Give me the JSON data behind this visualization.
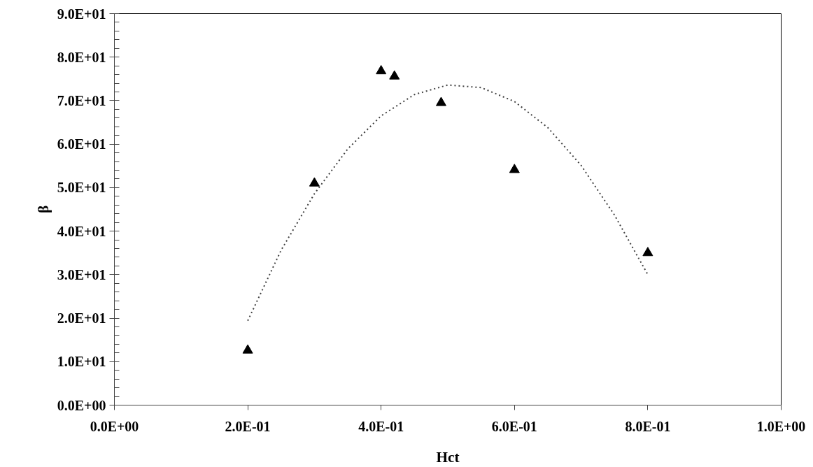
{
  "chart_data": {
    "type": "scatter",
    "xlabel": "Hct",
    "ylabel": "β",
    "series": [
      {
        "color": "#000000",
        "marker": "triangle",
        "x": [
          0.2,
          0.3,
          0.4,
          0.42,
          0.49,
          0.6,
          0.8
        ],
        "values": [
          12.6,
          51.0,
          76.8,
          75.6,
          69.5,
          54.1,
          35.0
        ]
      },
      {
        "type": "line",
        "color": "#404040",
        "line_style": "dotted",
        "marker": "none",
        "x": [
          0.2,
          0.25,
          0.3,
          0.35,
          0.4,
          0.45,
          0.5,
          0.55,
          0.6,
          0.65,
          0.7,
          0.75,
          0.8
        ],
        "values": [
          19.4,
          35.6,
          48.6,
          58.9,
          66.5,
          71.4,
          73.6,
          73.0,
          69.8,
          63.8,
          55.1,
          43.7,
          30.0
        ]
      }
    ],
    "xlim": [
      0,
      1
    ],
    "ylim": [
      0,
      90
    ],
    "xticks": [
      {
        "value": 0,
        "label": "0.0E+00"
      },
      {
        "value": 0.2,
        "label": "2.0E-01"
      },
      {
        "value": 0.4,
        "label": "4.0E-01"
      },
      {
        "value": 0.6,
        "label": "6.0E-01"
      },
      {
        "value": 0.8,
        "label": "8.0E-01"
      },
      {
        "value": 1,
        "label": "1.0E+00"
      }
    ],
    "yticks": [
      {
        "value": 0,
        "label": "0.0E+00"
      },
      {
        "value": 2,
        "label": null
      },
      {
        "value": 4,
        "label": null
      },
      {
        "value": 6,
        "label": null
      },
      {
        "value": 8,
        "label": null
      },
      {
        "value": 10,
        "label": "1.0E+01"
      },
      {
        "value": 12,
        "label": null
      },
      {
        "value": 14,
        "label": null
      },
      {
        "value": 16,
        "label": null
      },
      {
        "value": 18,
        "label": null
      },
      {
        "value": 20,
        "label": "2.0E+01"
      },
      {
        "value": 22,
        "label": null
      },
      {
        "value": 24,
        "label": null
      },
      {
        "value": 26,
        "label": null
      },
      {
        "value": 28,
        "label": null
      },
      {
        "value": 30,
        "label": "3.0E+01"
      },
      {
        "value": 32,
        "label": null
      },
      {
        "value": 34,
        "label": null
      },
      {
        "value": 36,
        "label": null
      },
      {
        "value": 38,
        "label": null
      },
      {
        "value": 40,
        "label": "4.0E+01"
      },
      {
        "value": 42,
        "label": null
      },
      {
        "value": 44,
        "label": null
      },
      {
        "value": 46,
        "label": null
      },
      {
        "value": 48,
        "label": null
      },
      {
        "value": 50,
        "label": "5.0E+01"
      },
      {
        "value": 52,
        "label": null
      },
      {
        "value": 54,
        "label": null
      },
      {
        "value": 56,
        "label": null
      },
      {
        "value": 58,
        "label": null
      },
      {
        "value": 60,
        "label": "6.0E+01"
      },
      {
        "value": 62,
        "label": null
      },
      {
        "value": 64,
        "label": null
      },
      {
        "value": 66,
        "label": null
      },
      {
        "value": 68,
        "label": null
      },
      {
        "value": 70,
        "label": "7.0E+01"
      },
      {
        "value": 72,
        "label": null
      },
      {
        "value": 74,
        "label": null
      },
      {
        "value": 76,
        "label": null
      },
      {
        "value": 78,
        "label": null
      },
      {
        "value": 80,
        "label": "8.0E+01"
      },
      {
        "value": 82,
        "label": null
      },
      {
        "value": 84,
        "label": null
      },
      {
        "value": 86,
        "label": null
      },
      {
        "value": 88,
        "label": null
      },
      {
        "value": 90,
        "label": "9.0E+01"
      }
    ],
    "grid": false
  }
}
